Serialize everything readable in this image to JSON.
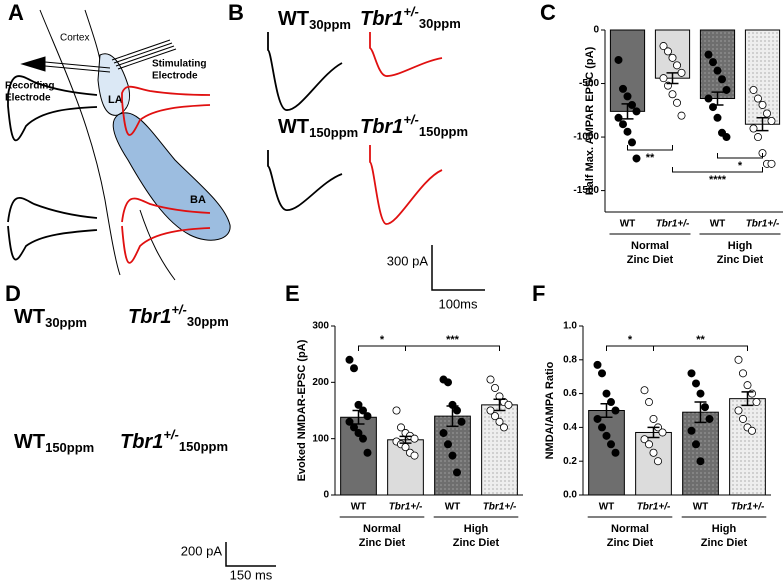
{
  "panels": [
    "A",
    "B",
    "C",
    "D",
    "E",
    "F"
  ],
  "schematic": {
    "cortex": "Cortex",
    "recording": [
      "Recording",
      "Electrode"
    ],
    "stimulating": [
      "Stimulating",
      "Electrode"
    ],
    "la": "LA",
    "ba": "BA"
  },
  "traces_b": [
    {
      "genotype": "WT",
      "sup": "",
      "dose": "30ppm"
    },
    {
      "genotype": "Tbr1",
      "sup": "+/-",
      "dose": "30ppm"
    },
    {
      "genotype": "WT",
      "sup": "",
      "dose": "150ppm"
    },
    {
      "genotype": "Tbr1",
      "sup": "+/-",
      "dose": "150ppm"
    }
  ],
  "traces_d": [
    {
      "genotype": "WT",
      "sup": "",
      "dose": "30ppm"
    },
    {
      "genotype": "Tbr1",
      "sup": "+/-",
      "dose": "30ppm"
    },
    {
      "genotype": "WT",
      "sup": "",
      "dose": "150ppm"
    },
    {
      "genotype": "Tbr1",
      "sup": "+/-",
      "dose": "150ppm"
    }
  ],
  "scale_b": [
    "300 pA",
    "100ms"
  ],
  "scale_d": [
    "200 pA",
    "150 ms"
  ],
  "chart_data": [
    {
      "type": "bar",
      "ylabel": "Half Max. AMPAR EPSC (pA)",
      "categories": [
        "WT",
        "Tbr1+/-",
        "WT",
        "Tbr1+/-"
      ],
      "groups": [
        [
          "Normal",
          "Zinc Diet"
        ],
        [
          "High",
          "Zinc Diet"
        ]
      ],
      "values": [
        -760,
        -450,
        -640,
        -880
      ],
      "errors": [
        70,
        50,
        60,
        60
      ],
      "points": [
        [
          -280,
          -550,
          -620,
          -700,
          -760,
          -820,
          -880,
          -950,
          -1050,
          -1200
        ],
        [
          -150,
          -200,
          -260,
          -330,
          -400,
          -450,
          -520,
          -600,
          -680,
          -800
        ],
        [
          -230,
          -300,
          -380,
          -460,
          -560,
          -640,
          -720,
          -820,
          -960,
          -1000
        ],
        [
          -560,
          -640,
          -700,
          -780,
          -850,
          -920,
          -1000,
          -1150,
          -1250,
          -1250
        ]
      ],
      "colors": [
        "#6e6e6e",
        "#dcdcdc",
        "#6e6e6e",
        "#e6e6e6"
      ],
      "hatch": [
        false,
        false,
        true,
        true
      ],
      "annotations": [
        "**",
        "****",
        "*"
      ],
      "ylim": [
        -1700,
        0
      ],
      "yticks": [
        0,
        -500,
        -1000,
        -1500
      ]
    },
    {
      "type": "bar",
      "ylabel": "Evoked NMDAR-EPSC (pA)",
      "categories": [
        "WT",
        "Tbr1+/-",
        "WT",
        "Tbr1+/-"
      ],
      "groups": [
        [
          "Normal",
          "Zinc Diet"
        ],
        [
          "High",
          "Zinc Diet"
        ]
      ],
      "values": [
        138,
        98,
        140,
        160
      ],
      "errors": [
        12,
        6,
        18,
        10
      ],
      "points": [
        [
          240,
          225,
          160,
          150,
          140,
          130,
          120,
          110,
          100,
          75
        ],
        [
          150,
          120,
          110,
          105,
          100,
          95,
          90,
          85,
          75,
          70
        ],
        [
          205,
          200,
          160,
          150,
          130,
          110,
          90,
          70,
          40
        ],
        [
          205,
          190,
          175,
          165,
          160,
          150,
          140,
          130,
          120
        ]
      ],
      "colors": [
        "#6e6e6e",
        "#dcdcdc",
        "#6e6e6e",
        "#e6e6e6"
      ],
      "hatch": [
        false,
        false,
        true,
        true
      ],
      "annotations": [
        "*",
        "***"
      ],
      "ylim": [
        0,
        300
      ],
      "yticks": [
        0,
        100,
        200,
        300
      ]
    },
    {
      "type": "bar",
      "ylabel": "NMDA/AMPA Ratio",
      "categories": [
        "WT",
        "Tbr1+/-",
        "WT",
        "Tbr1+/-"
      ],
      "groups": [
        [
          "Normal",
          "Zinc Diet"
        ],
        [
          "High",
          "Zinc Diet"
        ]
      ],
      "values": [
        0.5,
        0.37,
        0.49,
        0.57
      ],
      "errors": [
        0.04,
        0.03,
        0.06,
        0.04
      ],
      "points": [
        [
          0.77,
          0.72,
          0.6,
          0.55,
          0.5,
          0.45,
          0.4,
          0.35,
          0.3,
          0.25
        ],
        [
          0.62,
          0.55,
          0.45,
          0.4,
          0.37,
          0.33,
          0.3,
          0.25,
          0.2
        ],
        [
          0.72,
          0.66,
          0.6,
          0.52,
          0.45,
          0.38,
          0.3,
          0.2
        ],
        [
          0.8,
          0.72,
          0.65,
          0.6,
          0.55,
          0.5,
          0.45,
          0.4,
          0.38
        ]
      ],
      "colors": [
        "#6e6e6e",
        "#dcdcdc",
        "#6e6e6e",
        "#e6e6e6"
      ],
      "hatch": [
        false,
        false,
        true,
        true
      ],
      "annotations": [
        "*",
        "**"
      ],
      "ylim": [
        0,
        1.0
      ],
      "yticks": [
        {
          "value": 0,
          "label": "0.0"
        },
        {
          "value": 0.2,
          "label": "0.2"
        },
        {
          "value": 0.4,
          "label": "0.4"
        },
        {
          "value": 0.6,
          "label": "0.6"
        },
        {
          "value": 0.8,
          "label": "0.8"
        },
        {
          "value": 1.0,
          "label": "1.0"
        }
      ]
    }
  ]
}
